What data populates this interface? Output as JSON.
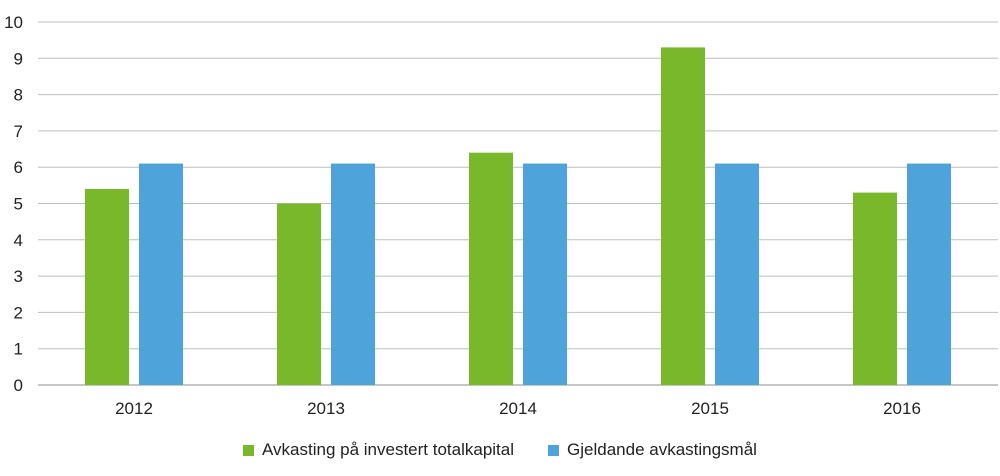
{
  "chart_data": {
    "type": "bar",
    "categories": [
      "2012",
      "2013",
      "2014",
      "2015",
      "2016"
    ],
    "series": [
      {
        "name": "Avkasting på investert totalkapital",
        "values": [
          5.4,
          5.0,
          6.4,
          9.3,
          5.3
        ],
        "color": "#78b82a"
      },
      {
        "name": "Gjeldande avkastingsmål",
        "values": [
          6.1,
          6.1,
          6.1,
          6.1,
          6.1
        ],
        "color": "#4fa3db"
      }
    ],
    "yticks": [
      "0",
      "1",
      "2",
      "3",
      "4",
      "5",
      "6",
      "7",
      "8",
      "9",
      "10"
    ],
    "ylim": [
      0,
      10
    ],
    "grid": true,
    "legend_position": "bottom",
    "title": "",
    "xlabel": "",
    "ylabel": ""
  }
}
